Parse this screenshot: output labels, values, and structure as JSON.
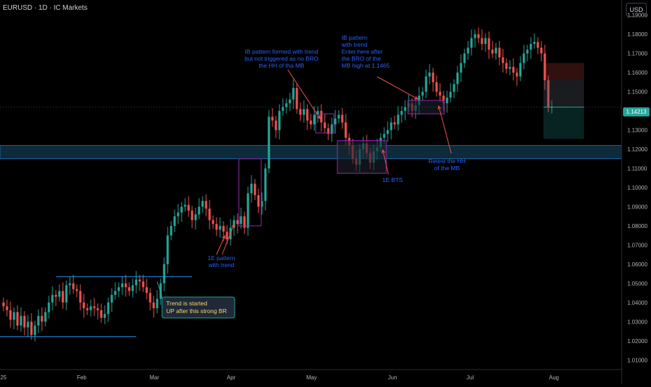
{
  "header": {
    "symbol": "EURUSD · 1D · IC Markets",
    "currency_button": "USD"
  },
  "current_price": "1.14213",
  "colors": {
    "up": "#26a69a",
    "down": "#ef5350",
    "annotation": "#2962ff",
    "zone": "#9c27b0",
    "line": "#2196f3"
  },
  "price_axis": [
    "1.19000",
    "1.18000",
    "1.17000",
    "1.16000",
    "1.15000",
    "1.14000",
    "1.13000",
    "1.12000",
    "1.11000",
    "1.10000",
    "1.09000",
    "1.08000",
    "1.07000",
    "1.06000",
    "1.05000",
    "1.04000",
    "1.03000",
    "1.02000",
    "1.01000"
  ],
  "time_axis": [
    "25",
    "Feb",
    "Mar",
    "Apr",
    "May",
    "Jun",
    "Jul",
    "Aug"
  ],
  "annotations": {
    "a1": [
      "1E pattern",
      "with trend"
    ],
    "a2": [
      "IB pattern formed with trend",
      "but not triggered as no BRO",
      "the HH of tha MB"
    ],
    "a3": [
      "IB pattern",
      "with trend",
      "Enter here after",
      "the BRO of the",
      "MB high at 1.1465"
    ],
    "a4": [
      "Retest the HH",
      "of the MB"
    ],
    "a5": [
      "1E BTS"
    ],
    "a6": [
      "Trend is started",
      "UP after this strong BR"
    ]
  },
  "chart_data": {
    "type": "candlestick",
    "symbol": "EURUSD",
    "timeframe": "1D",
    "ylim": [
      1.005,
      1.195
    ],
    "close": [
      1.038,
      1.036,
      1.031,
      1.035,
      1.028,
      1.033,
      1.027,
      1.03,
      1.023,
      1.028,
      1.033,
      1.03,
      1.035,
      1.04,
      1.044,
      1.043,
      1.046,
      1.04,
      1.049,
      1.05,
      1.047,
      1.046,
      1.04,
      1.037,
      1.036,
      1.038,
      1.037,
      1.036,
      1.032,
      1.034,
      1.04,
      1.044,
      1.046,
      1.048,
      1.05,
      1.048,
      1.046,
      1.049,
      1.052,
      1.051,
      1.048,
      1.045,
      1.04,
      1.037,
      1.042,
      1.05,
      1.06,
      1.075,
      1.08,
      1.085,
      1.087,
      1.09,
      1.091,
      1.088,
      1.083,
      1.086,
      1.09,
      1.093,
      1.089,
      1.083,
      1.081,
      1.078,
      1.08,
      1.077,
      1.073,
      1.079,
      1.083,
      1.081,
      1.085,
      1.079,
      1.097,
      1.102,
      1.096,
      1.09,
      1.093,
      1.11,
      1.137,
      1.135,
      1.13,
      1.14,
      1.142,
      1.144,
      1.146,
      1.152,
      1.141,
      1.138,
      1.141,
      1.135,
      1.133,
      1.138,
      1.14,
      1.134,
      1.131,
      1.128,
      1.133,
      1.136,
      1.138,
      1.134,
      1.126,
      1.122,
      1.115,
      1.112,
      1.12,
      1.123,
      1.118,
      1.113,
      1.119,
      1.121,
      1.126,
      1.128,
      1.13,
      1.134,
      1.133,
      1.138,
      1.14,
      1.142,
      1.144,
      1.14,
      1.143,
      1.148,
      1.15,
      1.158,
      1.16,
      1.155,
      1.15,
      1.148,
      1.144,
      1.147,
      1.15,
      1.154,
      1.16,
      1.165,
      1.17,
      1.173,
      1.178,
      1.18,
      1.178,
      1.175,
      1.178,
      1.172,
      1.17,
      1.173,
      1.168,
      1.165,
      1.162,
      1.163,
      1.16,
      1.158,
      1.165,
      1.17,
      1.172,
      1.175,
      1.176,
      1.173,
      1.17,
      1.156,
      1.142,
      1.142
    ]
  }
}
